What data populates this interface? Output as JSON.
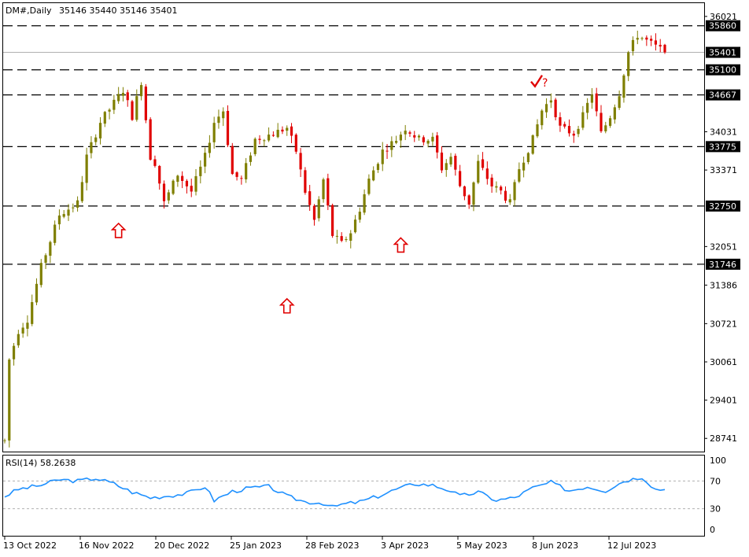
{
  "header": {
    "symbol": "DM#,Daily",
    "ohlc": "35146 35440 35146 35401"
  },
  "colors": {
    "up": "#7f7f00",
    "down": "#e00000",
    "rsi_line": "#1e90ff",
    "level_line": "#000000",
    "annotation": "#e00000",
    "tag_bg": "#000000",
    "tag_fg": "#ffffff"
  },
  "rsi_panel": {
    "label": "RSI(14) 58.2638",
    "levels": [
      "100",
      "70",
      "30",
      "0"
    ]
  },
  "chart_data": {
    "type": "candlestick",
    "y_ticks": [
      36021,
      34031,
      33371,
      32051,
      31386,
      30721,
      30061,
      29401,
      28741
    ],
    "ylim": [
      28500,
      36250
    ],
    "x_labels": [
      "13 Oct 2022",
      "16 Nov 2022",
      "20 Dec 2022",
      "25 Jan 2023",
      "28 Feb 2023",
      "3 Apr 2023",
      "5 May 2023",
      "8 Jun 2023",
      "12 Jul 2023"
    ],
    "levels": [
      {
        "label": "35860",
        "value": 35860
      },
      {
        "label": "35100",
        "value": 35100
      },
      {
        "label": "34667",
        "value": 34667
      },
      {
        "label": "33775",
        "value": 33775
      },
      {
        "label": "32750",
        "value": 32750
      },
      {
        "label": "31746",
        "value": 31746
      }
    ],
    "current_price": {
      "label": "35401",
      "value": 35401
    },
    "annotations": [
      {
        "type": "up-arrow",
        "index": 25,
        "value": 32450
      },
      {
        "type": "up-arrow",
        "index": 62,
        "value": 31150
      },
      {
        "type": "up-arrow",
        "index": 87,
        "value": 32200
      },
      {
        "type": "check-question",
        "index": 117,
        "value": 34950
      }
    ],
    "key_points": [
      [
        0,
        28700
      ],
      [
        1,
        30100
      ],
      [
        3,
        30600
      ],
      [
        5,
        30800
      ],
      [
        8,
        31700
      ],
      [
        12,
        32600
      ],
      [
        16,
        32800
      ],
      [
        18,
        33600
      ],
      [
        21,
        34200
      ],
      [
        26,
        34750
      ],
      [
        28,
        34300
      ],
      [
        30,
        34900
      ],
      [
        32,
        33600
      ],
      [
        33,
        33500
      ],
      [
        35,
        32800
      ],
      [
        38,
        33300
      ],
      [
        41,
        33000
      ],
      [
        44,
        33600
      ],
      [
        46,
        34200
      ],
      [
        48,
        34400
      ],
      [
        50,
        33300
      ],
      [
        52,
        33200
      ],
      [
        55,
        33900
      ],
      [
        59,
        34000
      ],
      [
        62,
        34100
      ],
      [
        64,
        33700
      ],
      [
        66,
        33000
      ],
      [
        68,
        32500
      ],
      [
        70,
        33200
      ],
      [
        72,
        32250
      ],
      [
        74,
        32100
      ],
      [
        76,
        32300
      ],
      [
        78,
        32700
      ],
      [
        80,
        33200
      ],
      [
        83,
        33700
      ],
      [
        86,
        33900
      ],
      [
        88,
        34100
      ],
      [
        91,
        33900
      ],
      [
        94,
        33900
      ],
      [
        96,
        33400
      ],
      [
        98,
        33600
      ],
      [
        100,
        33100
      ],
      [
        102,
        32800
      ],
      [
        104,
        33500
      ],
      [
        107,
        33100
      ],
      [
        109,
        33000
      ],
      [
        111,
        32800
      ],
      [
        113,
        33400
      ],
      [
        116,
        33900
      ],
      [
        118,
        34400
      ],
      [
        120,
        34600
      ],
      [
        122,
        34100
      ],
      [
        125,
        34000
      ],
      [
        127,
        34300
      ],
      [
        129,
        34700
      ],
      [
        131,
        34000
      ],
      [
        133,
        34300
      ],
      [
        135,
        34700
      ],
      [
        137,
        35400
      ],
      [
        139,
        35700
      ],
      [
        141,
        35600
      ],
      [
        143,
        35500
      ],
      [
        145,
        35401
      ]
    ],
    "rsi_key_points": [
      [
        0,
        48
      ],
      [
        3,
        58
      ],
      [
        8,
        64
      ],
      [
        12,
        72
      ],
      [
        16,
        70
      ],
      [
        20,
        74
      ],
      [
        24,
        66
      ],
      [
        28,
        54
      ],
      [
        32,
        46
      ],
      [
        35,
        48
      ],
      [
        40,
        52
      ],
      [
        44,
        62
      ],
      [
        46,
        42
      ],
      [
        50,
        55
      ],
      [
        54,
        60
      ],
      [
        58,
        62
      ],
      [
        62,
        48
      ],
      [
        66,
        40
      ],
      [
        70,
        38
      ],
      [
        72,
        32
      ],
      [
        74,
        36
      ],
      [
        78,
        40
      ],
      [
        82,
        48
      ],
      [
        86,
        58
      ],
      [
        90,
        66
      ],
      [
        94,
        64
      ],
      [
        98,
        56
      ],
      [
        100,
        48
      ],
      [
        104,
        54
      ],
      [
        108,
        42
      ],
      [
        112,
        46
      ],
      [
        116,
        60
      ],
      [
        120,
        68
      ],
      [
        124,
        56
      ],
      [
        128,
        62
      ],
      [
        132,
        56
      ],
      [
        136,
        70
      ],
      [
        140,
        76
      ],
      [
        143,
        58
      ],
      [
        145,
        58
      ]
    ]
  }
}
